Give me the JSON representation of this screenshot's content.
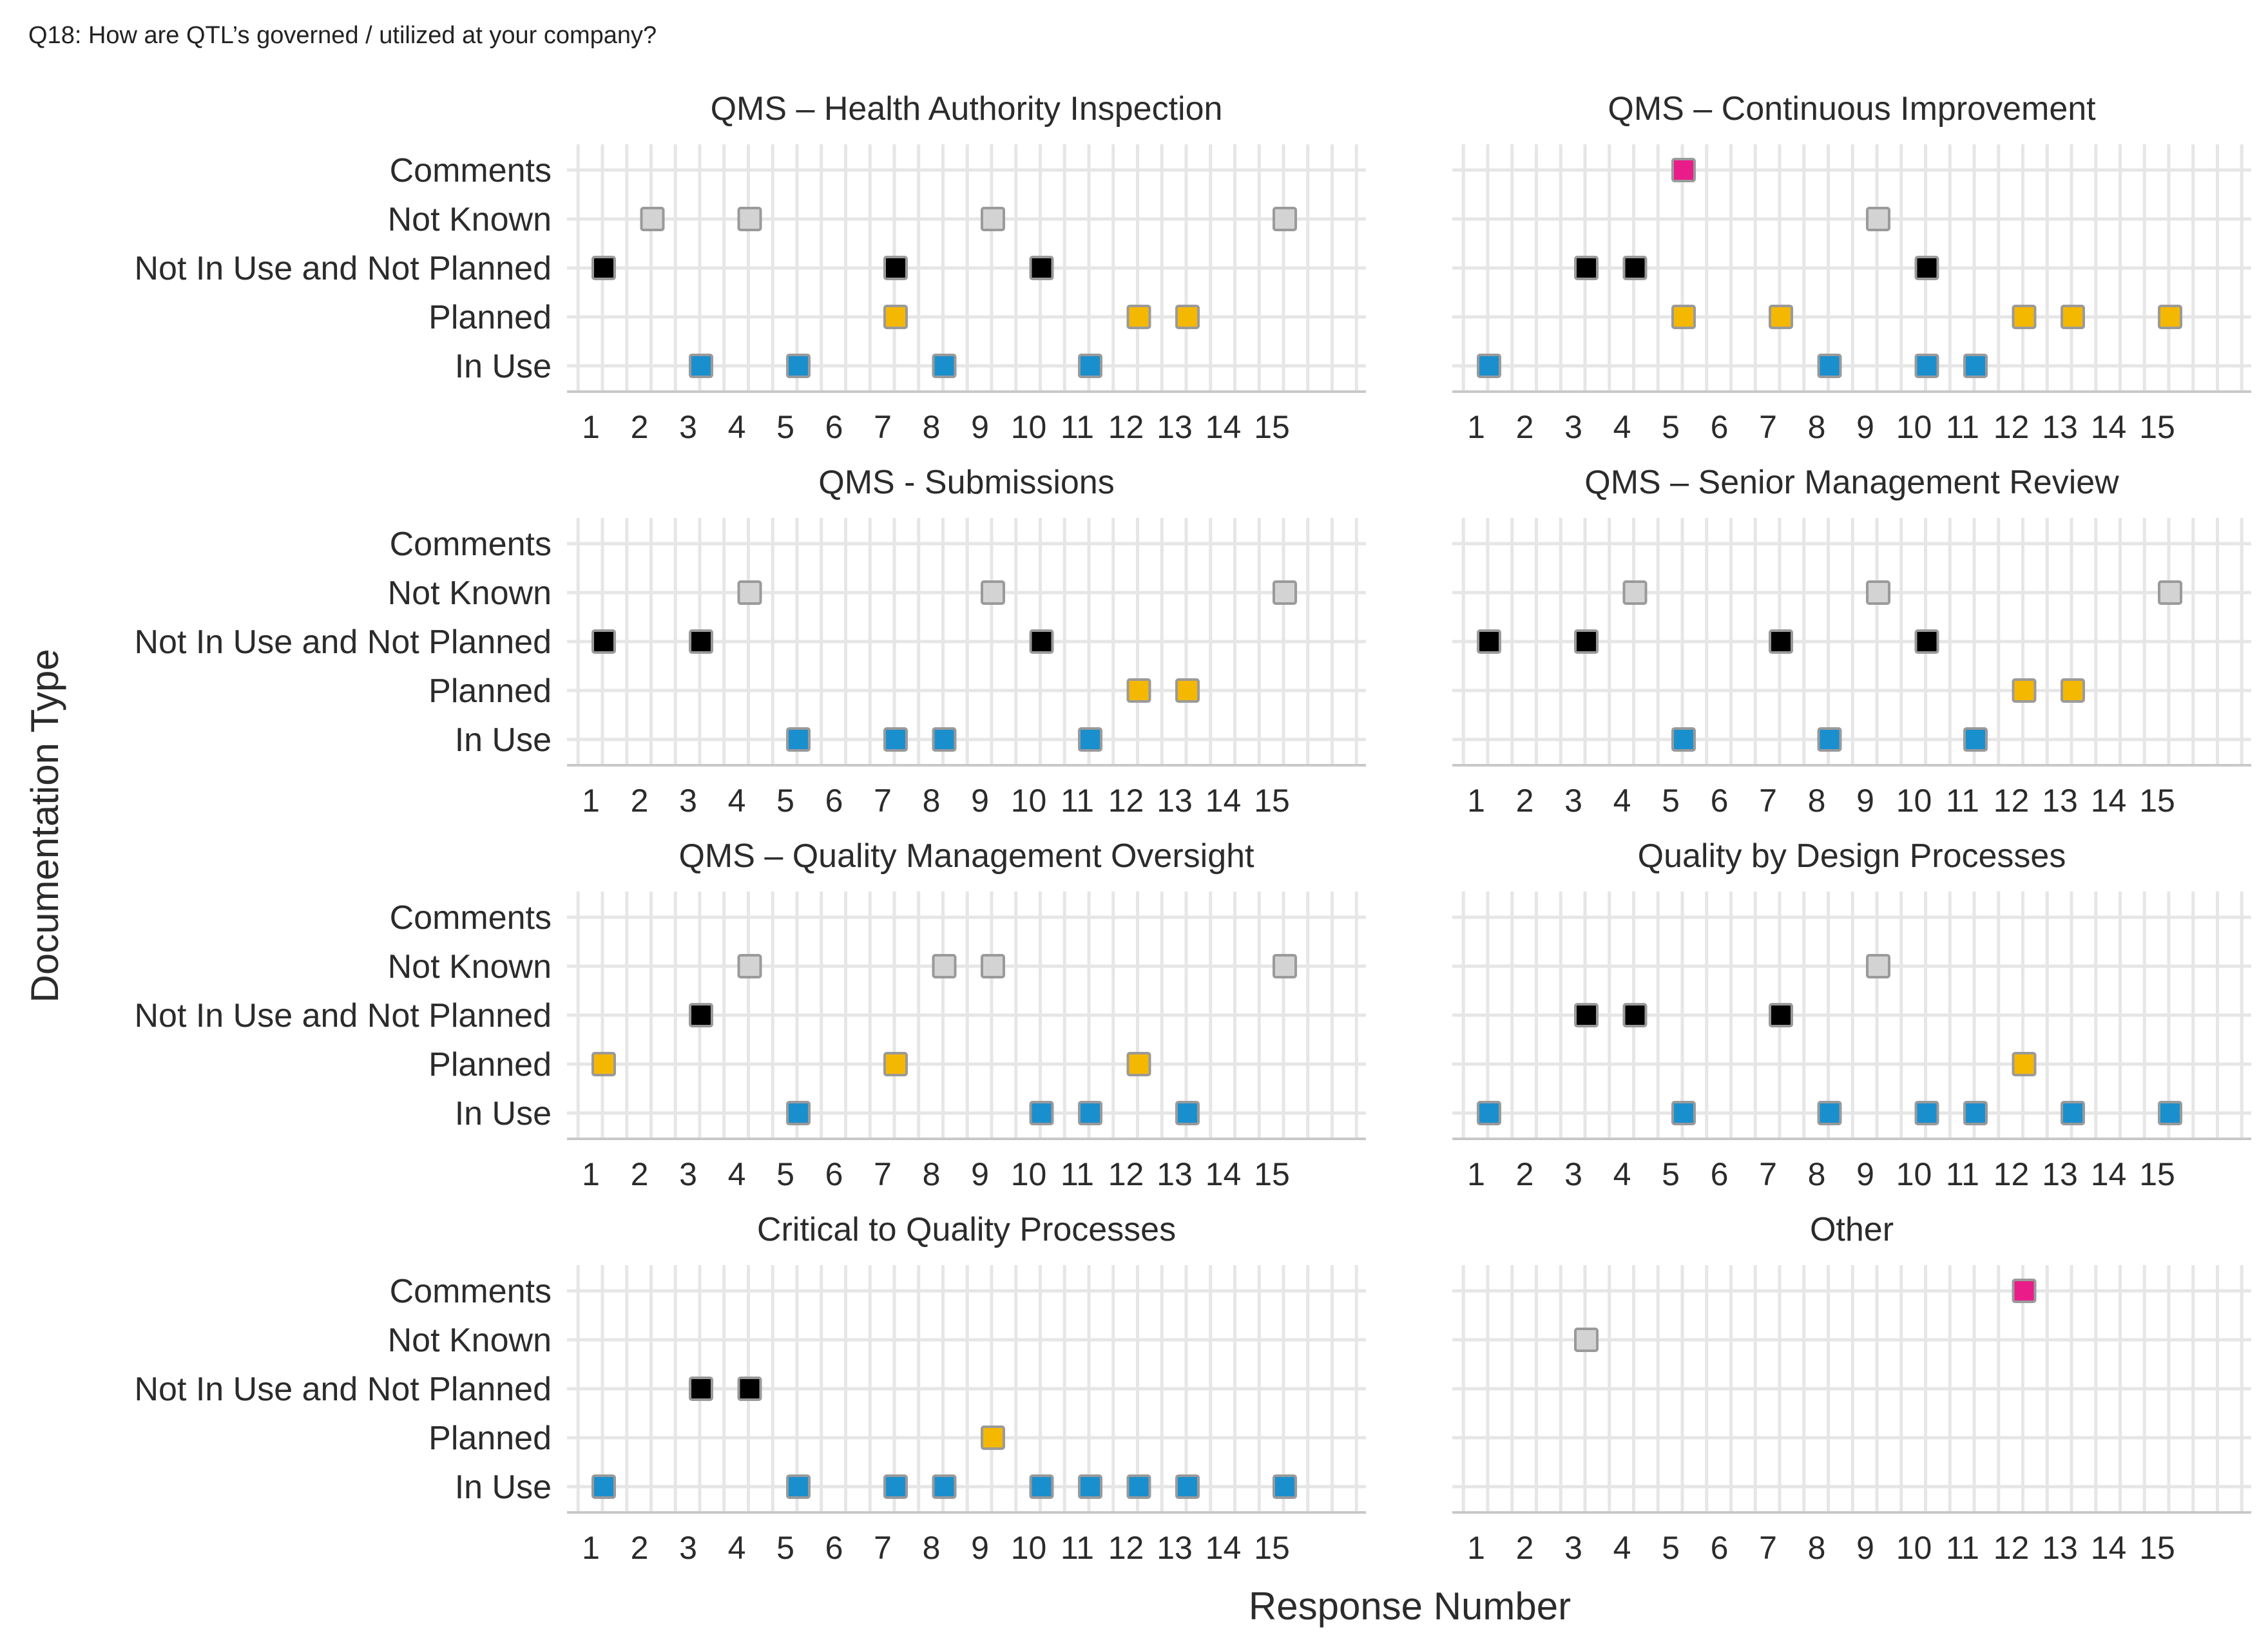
{
  "page": {
    "title": "Q18: How are QTL’s governed / utilized at your company?"
  },
  "chart_data": {
    "type": "scatter",
    "xlabel": "Response Number",
    "ylabel": "Documentation Type",
    "x_ticks": [
      1,
      2,
      3,
      4,
      5,
      6,
      7,
      8,
      9,
      10,
      11,
      12,
      13,
      14,
      15
    ],
    "y_categories": [
      "In Use",
      "Planned",
      "Not In Use and Not Planned",
      "Not Known",
      "Comments"
    ],
    "colors": {
      "In Use": "#1a8fce",
      "Planned": "#f5b800",
      "Not In Use and Not Planned": "#000000",
      "Not Known": "#d3d3d3",
      "Comments": "#ea1c8a"
    },
    "grid": true,
    "facets": [
      {
        "title": "QMS – Health Authority Inspection",
        "points": {
          "Comments": [],
          "Not Known": [
            2,
            4,
            9,
            15
          ],
          "Not In Use and Not Planned": [
            1,
            7,
            10
          ],
          "Planned": [
            7,
            12,
            13
          ],
          "In Use": [
            3,
            5,
            8,
            11
          ]
        }
      },
      {
        "title": "QMS – Continuous Improvement",
        "points": {
          "Comments": [
            5
          ],
          "Not Known": [
            9
          ],
          "Not In Use and Not Planned": [
            3,
            4,
            10
          ],
          "Planned": [
            5,
            7,
            12,
            13,
            15
          ],
          "In Use": [
            1,
            8,
            10,
            11
          ]
        }
      },
      {
        "title": "QMS - Submissions",
        "points": {
          "Comments": [],
          "Not Known": [
            4,
            9,
            15
          ],
          "Not In Use and Not Planned": [
            1,
            3,
            10
          ],
          "Planned": [
            12,
            13
          ],
          "In Use": [
            5,
            7,
            8,
            11
          ]
        }
      },
      {
        "title": "QMS – Senior Management Review",
        "points": {
          "Comments": [],
          "Not Known": [
            4,
            9,
            15
          ],
          "Not In Use and Not Planned": [
            1,
            3,
            7,
            10
          ],
          "Planned": [
            12,
            13
          ],
          "In Use": [
            5,
            8,
            11
          ]
        }
      },
      {
        "title": "QMS – Quality Management Oversight",
        "points": {
          "Comments": [],
          "Not Known": [
            4,
            8,
            9,
            15
          ],
          "Not In Use and Not Planned": [
            3
          ],
          "Planned": [
            1,
            7,
            12
          ],
          "In Use": [
            5,
            10,
            11,
            13
          ]
        }
      },
      {
        "title": "Quality by Design Processes",
        "points": {
          "Comments": [],
          "Not Known": [
            9
          ],
          "Not In Use and Not Planned": [
            3,
            4,
            7
          ],
          "Planned": [
            12
          ],
          "In Use": [
            1,
            5,
            8,
            10,
            11,
            13,
            15
          ]
        }
      },
      {
        "title": "Critical to Quality Processes",
        "points": {
          "Comments": [],
          "Not Known": [],
          "Not In Use and Not Planned": [
            3,
            4
          ],
          "Planned": [
            9
          ],
          "In Use": [
            1,
            5,
            7,
            8,
            10,
            11,
            12,
            13,
            15
          ]
        }
      },
      {
        "title": "Other",
        "points": {
          "Comments": [
            12
          ],
          "Not Known": [
            3
          ],
          "Not In Use and Not Planned": [],
          "Planned": [],
          "In Use": []
        }
      }
    ]
  }
}
